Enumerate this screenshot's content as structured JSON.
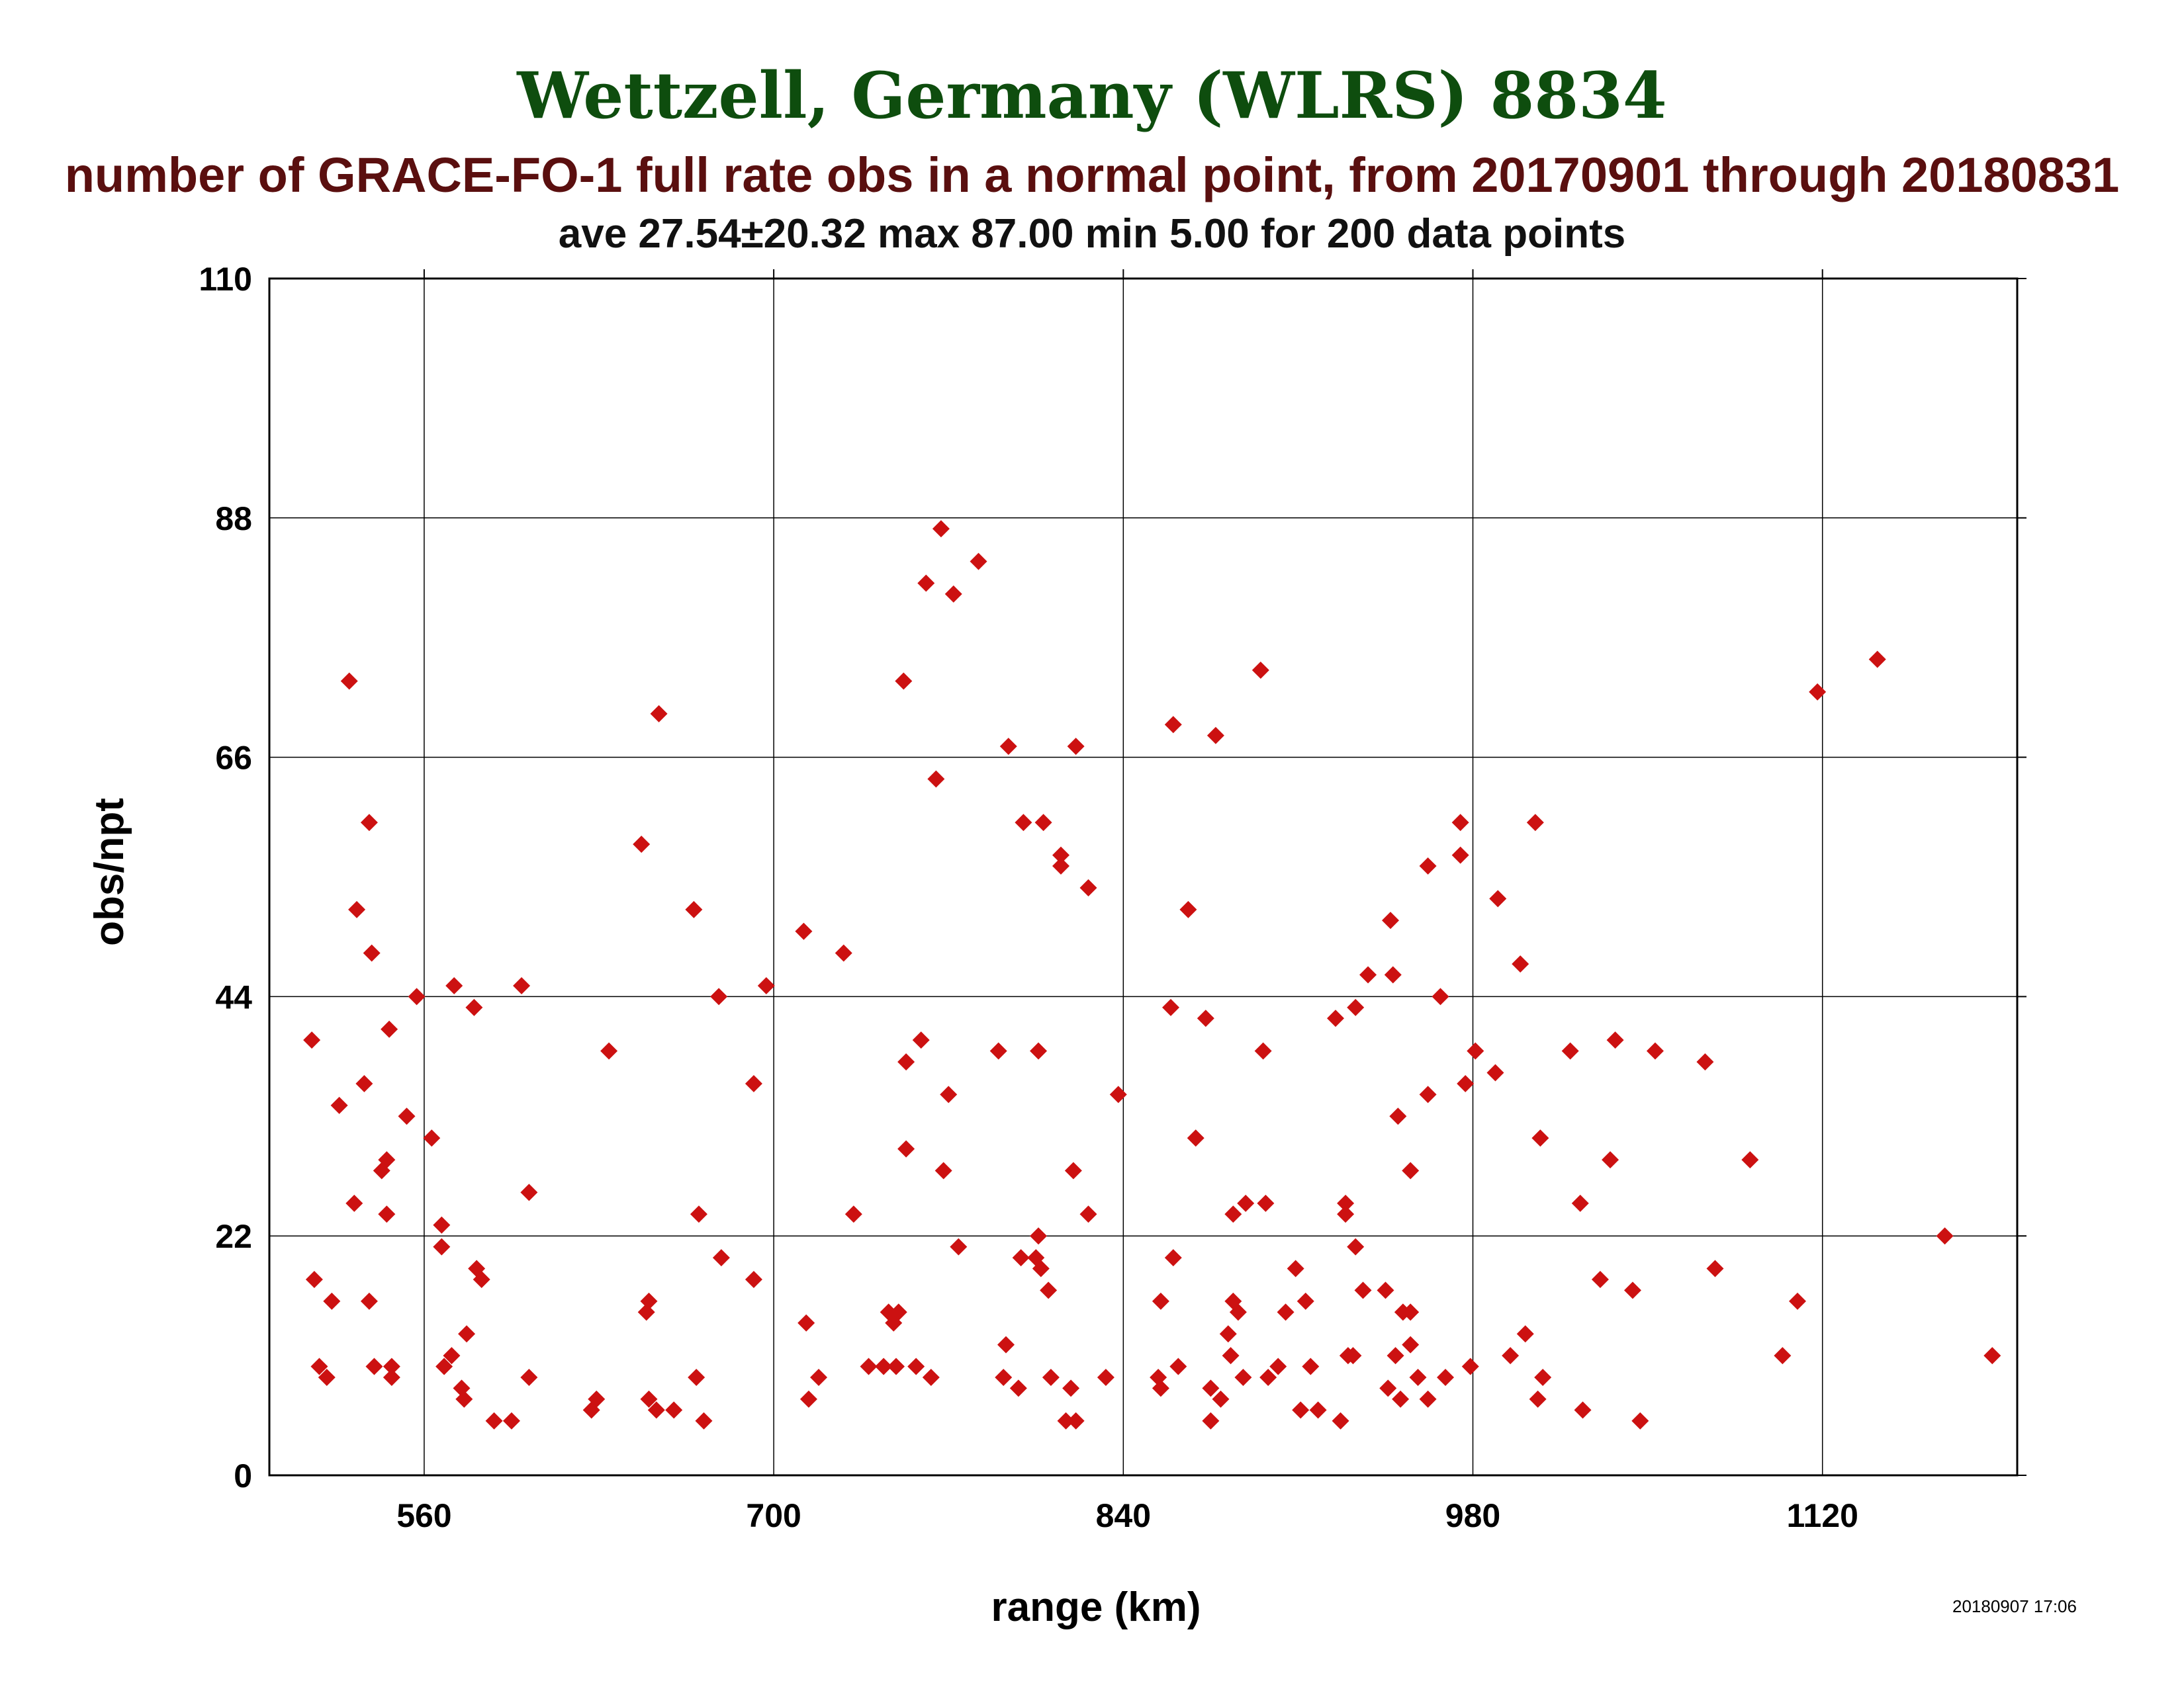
{
  "page": {
    "station_title": "Wettzell, Germany (WLRS) 8834",
    "subtitle": "number of GRACE-FO-1 full rate obs in a normal point, from 20170901 through 20180831",
    "stats": "ave 27.54±20.32 max 87.00 min 5.00 for 200 data points",
    "timestamp": "20180907 17:06"
  },
  "colors": {
    "title": "#0e4d0e",
    "subtitle": "#5a0f0f",
    "marker": "#cc1111",
    "grid": "#000000"
  },
  "chart_data": {
    "type": "scatter",
    "xlabel": "range (km)",
    "ylabel": "obs/npt",
    "xlim": [
      498,
      1198
    ],
    "ylim": [
      0,
      110
    ],
    "xticks": [
      560,
      700,
      840,
      980,
      1120
    ],
    "yticks": [
      0,
      22,
      44,
      66,
      88,
      110
    ],
    "grid": true,
    "marker": "diamond",
    "points": [
      [
        515,
        40
      ],
      [
        516,
        18
      ],
      [
        518,
        10
      ],
      [
        521,
        9
      ],
      [
        523,
        16
      ],
      [
        526,
        34
      ],
      [
        530,
        73
      ],
      [
        532,
        25
      ],
      [
        533,
        52
      ],
      [
        536,
        36
      ],
      [
        538,
        16
      ],
      [
        538,
        60
      ],
      [
        539,
        48
      ],
      [
        540,
        10
      ],
      [
        543,
        28
      ],
      [
        545,
        29
      ],
      [
        545,
        24
      ],
      [
        546,
        41
      ],
      [
        547,
        10
      ],
      [
        547,
        9
      ],
      [
        553,
        33
      ],
      [
        557,
        44
      ],
      [
        563,
        31
      ],
      [
        567,
        23
      ],
      [
        567,
        21
      ],
      [
        568,
        10
      ],
      [
        571,
        11
      ],
      [
        572,
        45
      ],
      [
        575,
        8
      ],
      [
        576,
        7
      ],
      [
        577,
        13
      ],
      [
        580,
        43
      ],
      [
        581,
        19
      ],
      [
        583,
        18
      ],
      [
        588,
        5
      ],
      [
        595,
        5
      ],
      [
        599,
        45
      ],
      [
        602,
        26
      ],
      [
        602,
        9
      ],
      [
        627,
        6
      ],
      [
        629,
        7
      ],
      [
        634,
        39
      ],
      [
        647,
        58
      ],
      [
        649,
        15
      ],
      [
        650,
        16
      ],
      [
        650,
        7
      ],
      [
        653,
        6
      ],
      [
        654,
        70
      ],
      [
        660,
        6
      ],
      [
        668,
        52
      ],
      [
        669,
        9
      ],
      [
        670,
        24
      ],
      [
        672,
        5
      ],
      [
        678,
        44
      ],
      [
        679,
        20
      ],
      [
        692,
        36
      ],
      [
        692,
        18
      ],
      [
        697,
        45
      ],
      [
        712,
        50
      ],
      [
        713,
        14
      ],
      [
        714,
        7
      ],
      [
        718,
        9
      ],
      [
        728,
        48
      ],
      [
        732,
        24
      ],
      [
        738,
        10
      ],
      [
        744,
        10
      ],
      [
        746,
        15
      ],
      [
        748,
        14
      ],
      [
        749,
        10
      ],
      [
        750,
        15
      ],
      [
        752,
        73
      ],
      [
        753,
        38
      ],
      [
        753,
        30
      ],
      [
        757,
        10
      ],
      [
        759,
        40
      ],
      [
        761,
        82
      ],
      [
        763,
        9
      ],
      [
        765,
        64
      ],
      [
        767,
        87
      ],
      [
        768,
        28
      ],
      [
        770,
        35
      ],
      [
        772,
        81
      ],
      [
        774,
        21
      ],
      [
        782,
        84
      ],
      [
        790,
        39
      ],
      [
        793,
        12
      ],
      [
        792,
        9
      ],
      [
        794,
        67
      ],
      [
        798,
        8
      ],
      [
        799,
        20
      ],
      [
        800,
        60
      ],
      [
        805,
        20
      ],
      [
        806,
        22
      ],
      [
        806,
        39
      ],
      [
        807,
        19
      ],
      [
        808,
        60
      ],
      [
        810,
        17
      ],
      [
        811,
        9
      ],
      [
        815,
        57
      ],
      [
        815,
        56
      ],
      [
        817,
        5
      ],
      [
        819,
        8
      ],
      [
        820,
        28
      ],
      [
        821,
        5
      ],
      [
        821,
        67
      ],
      [
        826,
        54
      ],
      [
        826,
        24
      ],
      [
        833,
        9
      ],
      [
        838,
        35
      ],
      [
        854,
        9
      ],
      [
        855,
        8
      ],
      [
        855,
        16
      ],
      [
        859,
        43
      ],
      [
        860,
        69
      ],
      [
        860,
        20
      ],
      [
        862,
        10
      ],
      [
        866,
        52
      ],
      [
        869,
        31
      ],
      [
        873,
        42
      ],
      [
        875,
        8
      ],
      [
        875,
        5
      ],
      [
        877,
        68
      ],
      [
        879,
        7
      ],
      [
        882,
        13
      ],
      [
        883,
        11
      ],
      [
        884,
        24
      ],
      [
        884,
        16
      ],
      [
        886,
        15
      ],
      [
        888,
        9
      ],
      [
        889,
        25
      ],
      [
        895,
        74
      ],
      [
        896,
        39
      ],
      [
        897,
        25
      ],
      [
        898,
        9
      ],
      [
        902,
        10
      ],
      [
        905,
        15
      ],
      [
        909,
        19
      ],
      [
        911,
        6
      ],
      [
        913,
        16
      ],
      [
        915,
        10
      ],
      [
        918,
        6
      ],
      [
        925,
        42
      ],
      [
        927,
        5
      ],
      [
        929,
        24
      ],
      [
        929,
        25
      ],
      [
        930,
        11
      ],
      [
        932,
        11
      ],
      [
        933,
        21
      ],
      [
        933,
        43
      ],
      [
        936,
        17
      ],
      [
        938,
        46
      ],
      [
        945,
        17
      ],
      [
        946,
        8
      ],
      [
        947,
        51
      ],
      [
        948,
        46
      ],
      [
        949,
        11
      ],
      [
        950,
        33
      ],
      [
        951,
        7
      ],
      [
        952,
        15
      ],
      [
        955,
        28
      ],
      [
        955,
        15
      ],
      [
        955,
        12
      ],
      [
        958,
        9
      ],
      [
        962,
        56
      ],
      [
        962,
        35
      ],
      [
        962,
        7
      ],
      [
        967,
        44
      ],
      [
        969,
        9
      ],
      [
        975,
        57
      ],
      [
        975,
        60
      ],
      [
        977,
        36
      ],
      [
        979,
        10
      ],
      [
        981,
        39
      ],
      [
        989,
        37
      ],
      [
        990,
        53
      ],
      [
        995,
        11
      ],
      [
        999,
        47
      ],
      [
        1001,
        13
      ],
      [
        1005,
        60
      ],
      [
        1007,
        31
      ],
      [
        1006,
        7
      ],
      [
        1008,
        9
      ],
      [
        1019,
        39
      ],
      [
        1023,
        25
      ],
      [
        1024,
        6
      ],
      [
        1031,
        18
      ],
      [
        1035,
        29
      ],
      [
        1037,
        40
      ],
      [
        1044,
        17
      ],
      [
        1047,
        5
      ],
      [
        1053,
        39
      ],
      [
        1073,
        38
      ],
      [
        1077,
        19
      ],
      [
        1091,
        29
      ],
      [
        1104,
        11
      ],
      [
        1110,
        16
      ],
      [
        1118,
        72
      ],
      [
        1142,
        75
      ],
      [
        1169,
        22
      ],
      [
        1188,
        11
      ]
    ]
  }
}
